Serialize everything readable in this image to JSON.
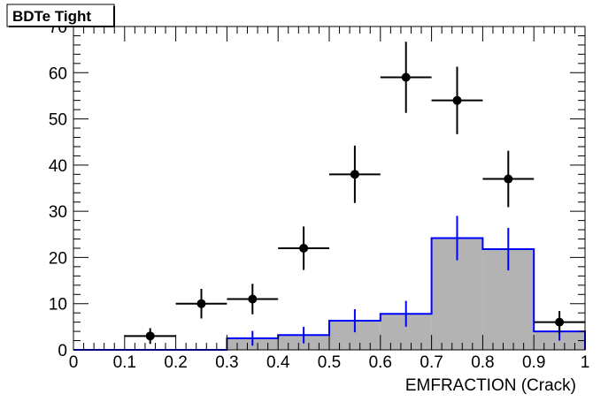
{
  "chart_data": {
    "type": "bar",
    "title": "BDTe Tight",
    "xlabel": "EMFRACTION (Crack)",
    "ylabel": "",
    "xlim": [
      0,
      1
    ],
    "ylim": [
      0,
      70
    ],
    "x_tick_labels": [
      "0",
      "0.1",
      "0.2",
      "0.3",
      "0.4",
      "0.5",
      "0.6",
      "0.7",
      "0.8",
      "0.9",
      "1"
    ],
    "y_tick_labels": [
      "0",
      "10",
      "20",
      "30",
      "40",
      "50",
      "60",
      "70"
    ],
    "bin_edges": [
      0,
      0.1,
      0.2,
      0.3,
      0.4,
      0.5,
      0.6,
      0.7,
      0.8,
      0.9,
      1.0
    ],
    "series": [
      {
        "style": "points-with-errors",
        "color": "#000000",
        "x": [
          0.15,
          0.25,
          0.35,
          0.45,
          0.55,
          0.65,
          0.75,
          0.85,
          0.95
        ],
        "values": [
          3,
          10,
          11,
          22,
          38,
          59,
          54,
          37,
          6
        ],
        "errors": [
          1.7,
          3.2,
          3.3,
          4.7,
          6.2,
          7.7,
          7.3,
          6.1,
          2.4
        ],
        "xerr": 0.05
      },
      {
        "style": "filled-histogram",
        "line_color": "#0000ff",
        "fill_color": "#b3b3b3",
        "values": [
          0,
          0,
          0,
          2.5,
          3.2,
          6.3,
          7.8,
          24.2,
          21.8,
          4.0
        ],
        "errors": [
          0,
          0,
          0,
          1.6,
          1.8,
          2.5,
          2.8,
          4.8,
          4.6,
          2.0
        ]
      }
    ],
    "grid": false,
    "legend": "none"
  }
}
